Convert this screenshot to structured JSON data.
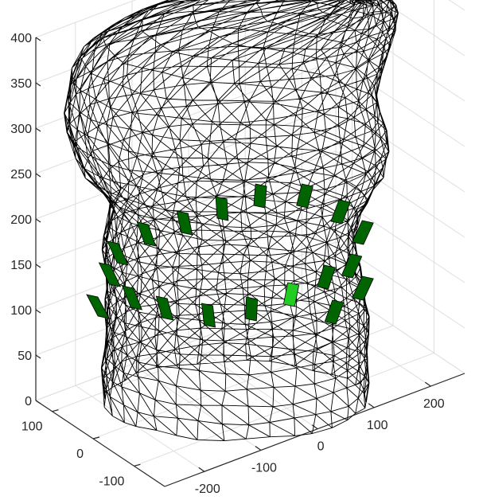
{
  "chart_data": {
    "type": "wireframe-surface-3d",
    "title": "",
    "xlabel": "",
    "ylabel": "",
    "zlabel": "",
    "grid": true,
    "axes": {
      "z": {
        "ticks": [
          0,
          50,
          100,
          150,
          200,
          250,
          300,
          350,
          400
        ],
        "tick_labels": [
          "0",
          "50",
          "100",
          "150",
          "200",
          "250",
          "300",
          "350",
          "400"
        ]
      },
      "front_right": {
        "ticks": [
          -200,
          -100,
          0,
          100,
          200
        ],
        "tick_labels": [
          "-200",
          "-100",
          "0",
          "100",
          "200"
        ]
      },
      "front_left": {
        "ticks": [
          100,
          0,
          -100
        ],
        "tick_labels": [
          "100",
          "0",
          "-100"
        ]
      }
    },
    "mesh": {
      "edge_color": "#000000",
      "face_color": "none",
      "style": "triangulated"
    },
    "highlighted_patches": {
      "face_color": "#006400",
      "bright_face_color": "#22cc22",
      "count": 19,
      "approx_z_band": [
        130,
        300
      ]
    }
  }
}
